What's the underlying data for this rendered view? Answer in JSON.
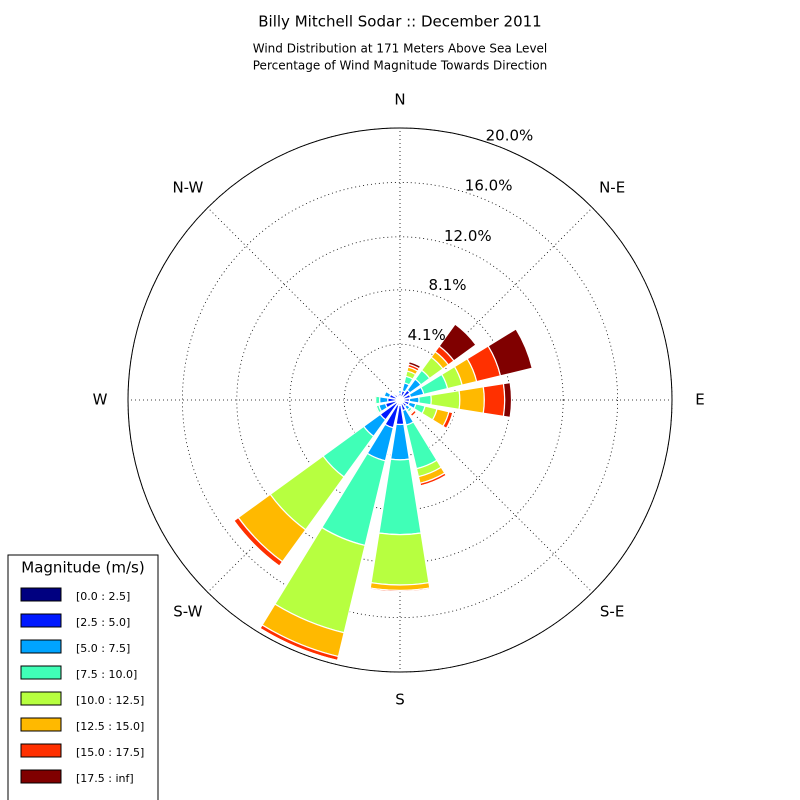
{
  "chart_data": {
    "type": "windrose",
    "title": "Billy Mitchell Sodar :: December 2011",
    "subtitle": [
      "Wind Distribution at 171 Meters Above Sea Level",
      "Percentage of Wind Magnitude Towards Direction"
    ],
    "x": [
      0,
      22.5,
      45,
      67.5,
      90,
      112.5,
      135,
      157.5,
      180,
      202.5,
      225,
      247.5,
      270,
      292.5,
      315,
      337.5
    ],
    "xticks": [
      {
        "value": 0,
        "label": "N"
      },
      {
        "value": 45,
        "label": "N-E"
      },
      {
        "value": 90,
        "label": "E"
      },
      {
        "value": 135,
        "label": "S-E"
      },
      {
        "value": 180,
        "label": "S"
      },
      {
        "value": 225,
        "label": "S-W"
      },
      {
        "value": 270,
        "label": "W"
      },
      {
        "value": 315,
        "label": "N-W"
      }
    ],
    "ylim": [
      0,
      20.0
    ],
    "yticks": [
      {
        "value": 4.1,
        "label": "4.1%"
      },
      {
        "value": 8.1,
        "label": "8.1%"
      },
      {
        "value": 12.0,
        "label": "12.0%"
      },
      {
        "value": 16.0,
        "label": "16.0%"
      },
      {
        "value": 20.0,
        "label": "20.0%"
      }
    ],
    "grid": true,
    "legend_title": "Magnitude (m/s)",
    "legend_position": "lower left",
    "series": [
      {
        "name": "[0.0 : 2.5]",
        "color": "#000080",
        "values": [
          0.2,
          0.2,
          0.3,
          0.3,
          0.3,
          0.3,
          0.2,
          0.3,
          0.4,
          0.4,
          0.3,
          0.3,
          0.3,
          0.3,
          0.2,
          0.2
        ]
      },
      {
        "name": "[2.5 : 5.0]",
        "color": "#0019ff",
        "values": [
          0.3,
          0.5,
          0.6,
          0.5,
          0.4,
          0.4,
          0.4,
          0.5,
          1.4,
          1.7,
          1.5,
          0.8,
          0.6,
          0.5,
          0.3,
          0.2
        ]
      },
      {
        "name": "[5.0 : 7.5]",
        "color": "#00a4ff",
        "values": [
          0.2,
          0.6,
          1.0,
          1.0,
          0.7,
          0.5,
          0.3,
          1.1,
          2.6,
          2.5,
          1.5,
          0.5,
          0.6,
          0.4,
          0.1,
          0.1
        ]
      },
      {
        "name": "[7.5 : 10.0]",
        "color": "#40ffb7",
        "values": [
          0.1,
          0.5,
          0.8,
          1.8,
          0.9,
          0.7,
          0.2,
          3.3,
          5.5,
          6.4,
          3.7,
          0.2,
          0.3,
          0.1,
          0.1,
          0.1
        ]
      },
      {
        "name": "[10.0 : 12.5]",
        "color": "#b7ff40",
        "values": [
          0,
          0.4,
          1.2,
          1.1,
          2.1,
          0.9,
          0.1,
          0.6,
          3.7,
          6.6,
          4.8,
          0.1,
          0.1,
          0,
          0,
          0
        ]
      },
      {
        "name": "[12.5 : 15.0]",
        "color": "#ffb900",
        "values": [
          0,
          0.3,
          0.5,
          1.1,
          1.8,
          0.9,
          0.1,
          0.5,
          0.4,
          1.8,
          2.9,
          0,
          0,
          0,
          0,
          0
        ]
      },
      {
        "name": "[15.0 : 17.5]",
        "color": "#ff3000",
        "values": [
          0,
          0.2,
          0.5,
          1.8,
          1.5,
          0.3,
          0.2,
          0.2,
          0.1,
          0.3,
          0.4,
          0,
          0,
          0,
          0,
          0
        ]
      },
      {
        "name": "[17.5 : inf]",
        "color": "#800000",
        "values": [
          0,
          0.2,
          2.0,
          2.4,
          0.5,
          0.05,
          0,
          0,
          0,
          0,
          0,
          0,
          0,
          0,
          0,
          0
        ]
      }
    ]
  }
}
